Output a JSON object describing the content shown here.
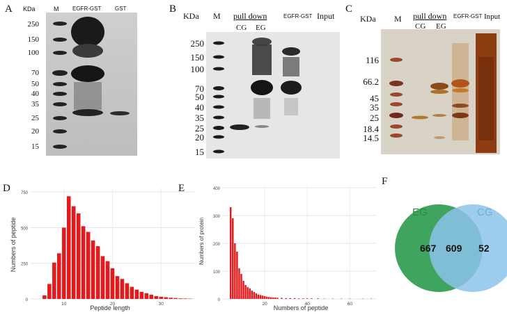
{
  "panels": {
    "A": "A",
    "B": "B",
    "C": "C",
    "D": "D",
    "E": "E",
    "F": "F"
  },
  "panelA": {
    "kda": "KDa",
    "lanes": [
      "M",
      "EGFR-GST",
      "GST"
    ],
    "markers": [
      "250",
      "150",
      "100",
      "70",
      "50",
      "40",
      "35",
      "25",
      "20",
      "15"
    ]
  },
  "panelB": {
    "kda": "KDa",
    "m": "M",
    "pulldown": "pull down",
    "cg": "CG",
    "eg": "EG",
    "egfr": "EGFR-GST",
    "input": "Input",
    "markers": [
      "250",
      "150",
      "100",
      "70",
      "50",
      "40",
      "35",
      "25",
      "20",
      "15"
    ]
  },
  "panelC": {
    "kda": "KDa",
    "m": "M",
    "pulldown": "pull down",
    "cg": "CG",
    "eg": "EG",
    "egfr": "EGFR-GST",
    "input": "Input",
    "markers": [
      "116",
      "66.2",
      "45",
      "35",
      "25",
      "18.4",
      "14.5"
    ]
  },
  "chart_data": [
    {
      "type": "bar",
      "xlabel": "Peptide length",
      "ylabel": "Numbers of peptide",
      "xlim": [
        3,
        37
      ],
      "ylim": [
        0,
        780
      ],
      "xticks": [
        10,
        20,
        30
      ],
      "yticks": [
        0,
        250,
        500,
        750
      ],
      "x": [
        6,
        7,
        8,
        9,
        10,
        11,
        12,
        13,
        14,
        15,
        16,
        17,
        18,
        19,
        20,
        21,
        22,
        23,
        24,
        25,
        26,
        27,
        28,
        29,
        30,
        31,
        32,
        33,
        34,
        35,
        36
      ],
      "values": [
        25,
        105,
        255,
        320,
        500,
        720,
        650,
        600,
        510,
        470,
        410,
        370,
        300,
        265,
        215,
        160,
        140,
        110,
        85,
        65,
        50,
        40,
        30,
        20,
        15,
        12,
        8,
        6,
        4,
        3,
        2
      ]
    },
    {
      "type": "bar",
      "xlabel": "Numbers of peptide",
      "ylabel": "Numbers of protein",
      "xlim": [
        0,
        72
      ],
      "ylim": [
        0,
        410
      ],
      "xticks": [
        20,
        40,
        60
      ],
      "yticks": [
        0,
        100,
        200,
        300,
        400
      ],
      "x": [
        4,
        5,
        6,
        7,
        8,
        9,
        10,
        11,
        12,
        13,
        14,
        15,
        16,
        17,
        18,
        19,
        20,
        21,
        22,
        23,
        24,
        25,
        26,
        28,
        30,
        32,
        34,
        36,
        38,
        40,
        42,
        45,
        48,
        52,
        56,
        60,
        66,
        70
      ],
      "values": [
        330,
        290,
        200,
        170,
        110,
        90,
        65,
        50,
        42,
        38,
        30,
        25,
        20,
        16,
        14,
        12,
        10,
        8,
        7,
        6,
        5,
        5,
        4,
        4,
        3,
        3,
        3,
        2,
        2,
        2,
        2,
        2,
        1,
        1,
        1,
        1,
        1,
        1
      ]
    }
  ],
  "venn": {
    "left_label": "EG",
    "right_label": "CG",
    "left_only": "667",
    "overlap": "609",
    "right_only": "52",
    "left_color": "#3fa45e",
    "right_color": "#8cc3ea",
    "left_label_color": "#2e8b3f",
    "right_label_color": "#6aaed6"
  }
}
